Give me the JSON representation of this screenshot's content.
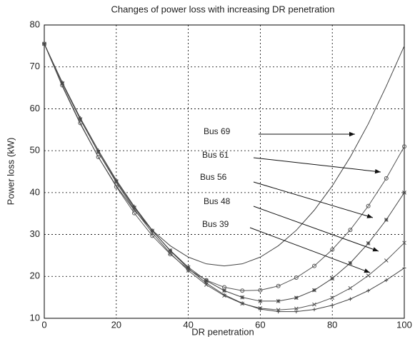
{
  "chart_data": {
    "type": "line",
    "title": "Changes of power loss with increasing DR penetration",
    "xlabel": "DR penetration",
    "ylabel": "Power loss (kW)",
    "x": [
      0,
      5,
      10,
      15,
      20,
      25,
      30,
      35,
      40,
      45,
      50,
      55,
      60,
      65,
      70,
      75,
      80,
      85,
      90,
      95,
      100
    ],
    "series": [
      {
        "name": "Bus 69",
        "color": "#444444",
        "marker": "none",
        "values": [
          75.5,
          65.4,
          56.4,
          48.5,
          41.6,
          35.8,
          31.0,
          27.3,
          24.6,
          23.0,
          22.5,
          23.0,
          24.6,
          27.3,
          31.0,
          35.8,
          41.6,
          48.5,
          56.4,
          65.4,
          75.0
        ]
      },
      {
        "name": "Bus 61",
        "color": "#555555",
        "marker": "circle",
        "values": [
          75.5,
          65.6,
          56.6,
          48.5,
          41.4,
          35.1,
          29.7,
          25.3,
          21.7,
          19.1,
          17.4,
          16.6,
          16.7,
          17.7,
          19.7,
          22.5,
          26.4,
          31.1,
          36.8,
          43.4,
          51.0
        ]
      },
      {
        "name": "Bus 56",
        "color": "#444444",
        "marker": "asterisk",
        "values": [
          75.5,
          66.1,
          57.5,
          49.7,
          42.7,
          36.4,
          30.9,
          26.2,
          22.2,
          19.0,
          16.6,
          15.0,
          14.1,
          14.1,
          14.9,
          16.7,
          19.5,
          23.2,
          27.9,
          33.5,
          40.0
        ]
      },
      {
        "name": "Bus 48",
        "color": "#555555",
        "marker": "cross",
        "values": [
          75.5,
          66.1,
          57.5,
          49.6,
          42.4,
          36.0,
          30.4,
          25.5,
          21.4,
          18.0,
          15.4,
          13.5,
          12.4,
          12.0,
          12.3,
          13.3,
          14.9,
          17.2,
          20.2,
          23.8,
          28.0
        ]
      },
      {
        "name": "Bus 39",
        "color": "#444444",
        "marker": "plus",
        "values": [
          75.5,
          66.3,
          57.8,
          50.1,
          43.0,
          36.7,
          31.0,
          26.1,
          21.9,
          18.4,
          15.6,
          13.6,
          12.2,
          11.6,
          11.6,
          12.1,
          13.1,
          14.6,
          16.6,
          19.1,
          22.0
        ]
      }
    ],
    "xlim": [
      0,
      100
    ],
    "xticks": [
      0,
      20,
      40,
      60,
      80,
      100
    ],
    "ylim": [
      10,
      80
    ],
    "yticks": [
      10,
      20,
      30,
      40,
      50,
      60,
      70,
      80
    ],
    "grid": true
  }
}
